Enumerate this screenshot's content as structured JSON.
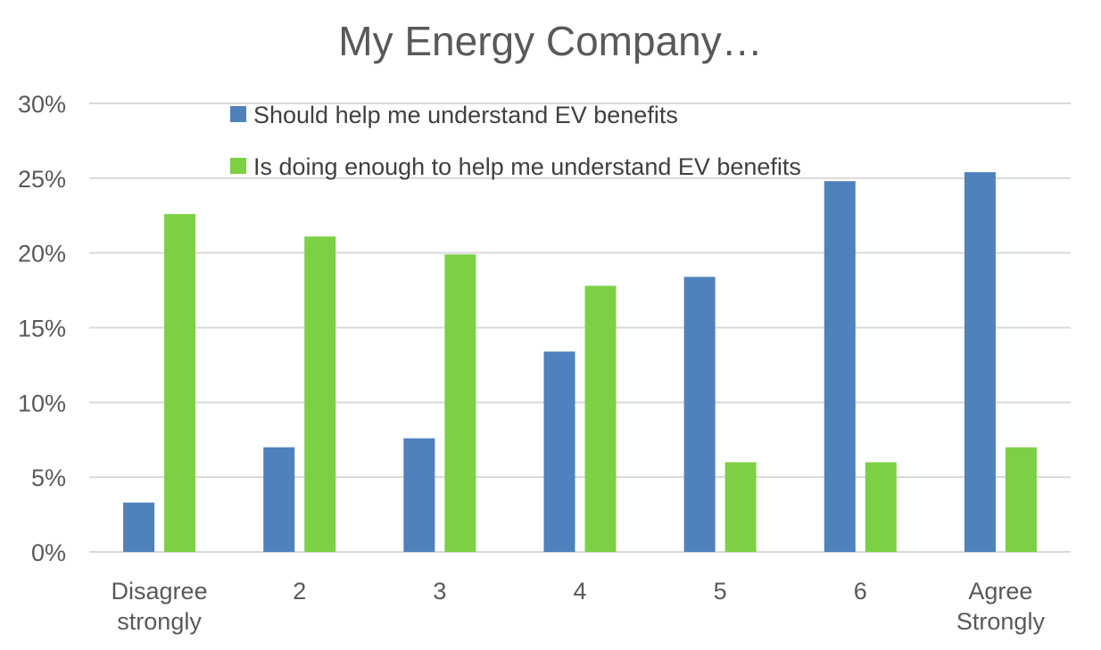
{
  "chart_data": {
    "type": "bar",
    "title": "My Energy Company…",
    "xlabel": "",
    "ylabel": "",
    "ylim": [
      0,
      0.3
    ],
    "yticks": [
      "0%",
      "5%",
      "10%",
      "15%",
      "20%",
      "25%",
      "30%"
    ],
    "ytick_values": [
      0,
      0.05,
      0.1,
      0.15,
      0.2,
      0.25,
      0.3
    ],
    "grid": true,
    "legend_position": "top-center",
    "categories": [
      [
        "Disagree",
        "strongly"
      ],
      [
        "2"
      ],
      [
        "3"
      ],
      [
        "4"
      ],
      [
        "5"
      ],
      [
        "6"
      ],
      [
        "Agree",
        "Strongly"
      ]
    ],
    "series": [
      {
        "name": "Should help me understand EV benefits",
        "color": "#4F81BD",
        "values": [
          0.033,
          0.07,
          0.076,
          0.134,
          0.184,
          0.248,
          0.254
        ]
      },
      {
        "name": "Is doing enough to help me understand EV benefits",
        "color": "#7DD044",
        "values": [
          0.226,
          0.211,
          0.199,
          0.178,
          0.06,
          0.06,
          0.07
        ]
      }
    ]
  }
}
